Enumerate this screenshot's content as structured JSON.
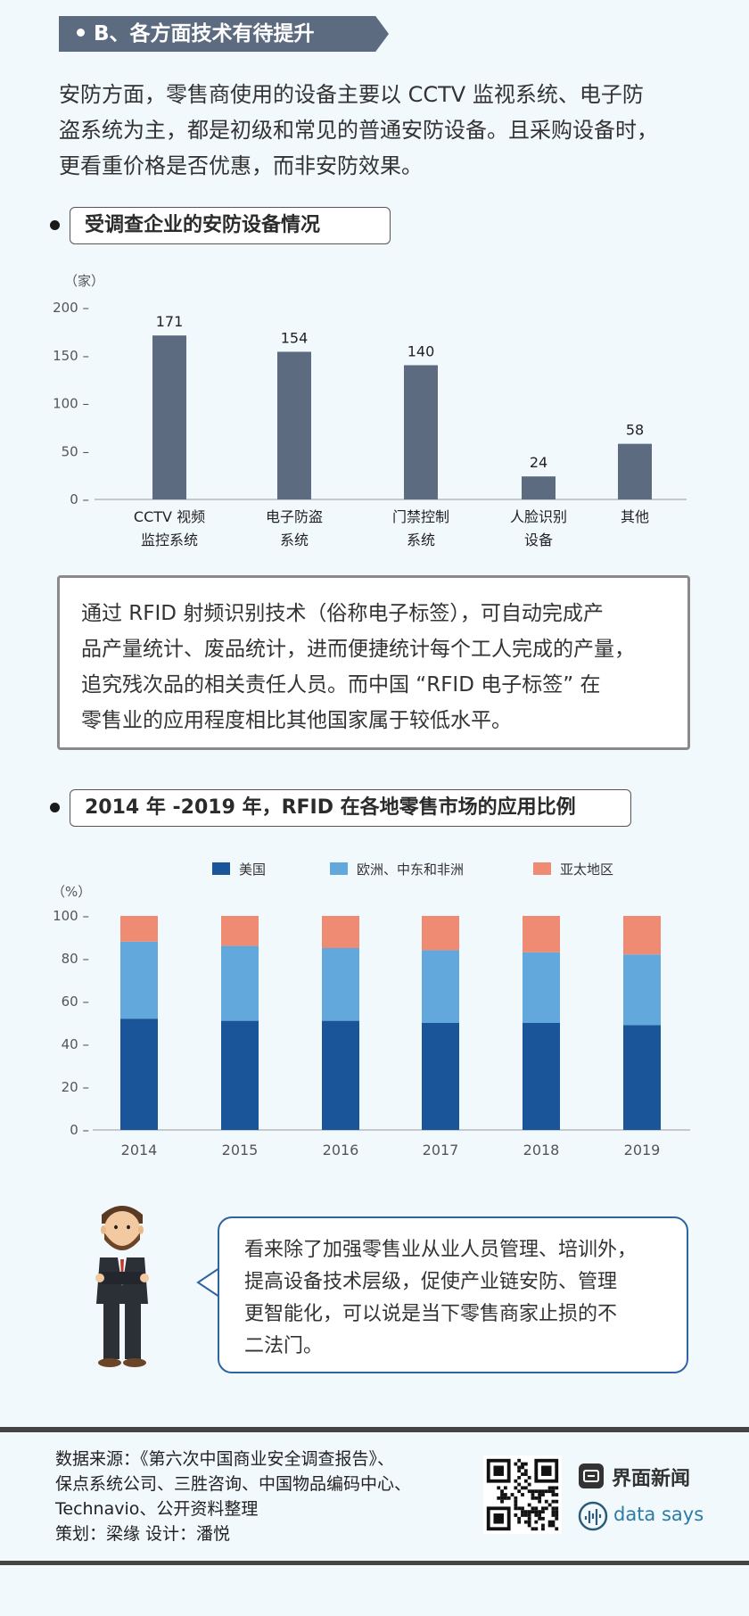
{
  "section": {
    "title": "B、各方面技术有待提升"
  },
  "intro": [
    "安防方面，零售商使用的设备主要以 CCTV 监视系统、电子防",
    "盗系统为主，都是初级和常见的普通安防设备。且采购设备时，",
    "更看重价格是否优惠，而非安防效果。"
  ],
  "chart1_title": "受调查企业的安防设备情况",
  "info_text": [
    "通过 RFID 射频识别技术（俗称电子标签），可自动完成产",
    "品产量统计、废品统计，进而便捷统计每个工人完成的产量，",
    "追究残次品的相关责任人员。而中国 “RFID 电子标签” 在",
    "零售业的应用程度相比其他国家属于较低水平。"
  ],
  "chart2_title": "2014 年 -2019 年，RFID 在各地零售市场的应用比例",
  "bubble_text": [
    "看来除了加强零售业从业人员管理、培训外，",
    "提高设备技术层级，促使产业链安防、管理",
    "更智能化，可以说是当下零售商家止损的不",
    "二法门。"
  ],
  "footer": {
    "source_lines": [
      "数据来源：《第六次中国商业安全调查报告》、",
      "保点系统公司、三胜咨询、中国物品编码中心、",
      "Technavio、公开资料整理"
    ],
    "credits": "策划：梁缘      设计：潘悦",
    "brand1": "界面新闻",
    "brand2": "data says"
  },
  "colors": {
    "bar": "#5c6b80",
    "us": "#1a5599",
    "eu": "#62a8dc",
    "ap": "#ef8b72"
  },
  "chart_data": [
    {
      "type": "bar",
      "ylabel": "（家）",
      "ylim": [
        0,
        200
      ],
      "yticks": [
        0,
        50,
        100,
        150,
        200
      ],
      "categories": [
        [
          "CCTV 视频",
          "监控系统"
        ],
        [
          "电子防盗",
          "系统"
        ],
        [
          "门禁控制",
          "系统"
        ],
        [
          "人脸识别",
          "设备"
        ],
        [
          "其他"
        ]
      ],
      "values": [
        171,
        154,
        140,
        24,
        58
      ]
    },
    {
      "type": "bar",
      "stacked": true,
      "ylabel": "（%）",
      "ylim": [
        0,
        100
      ],
      "yticks": [
        0,
        20,
        40,
        60,
        80,
        100
      ],
      "categories": [
        "2014",
        "2015",
        "2016",
        "2017",
        "2018",
        "2019"
      ],
      "series": [
        {
          "name": "美国",
          "values": [
            52,
            51,
            51,
            50,
            50,
            49
          ]
        },
        {
          "name": "欧洲、中东和非洲",
          "values": [
            36,
            35,
            34,
            34,
            33,
            33
          ]
        },
        {
          "name": "亚太地区",
          "values": [
            12,
            14,
            15,
            16,
            17,
            18
          ]
        }
      ]
    }
  ]
}
